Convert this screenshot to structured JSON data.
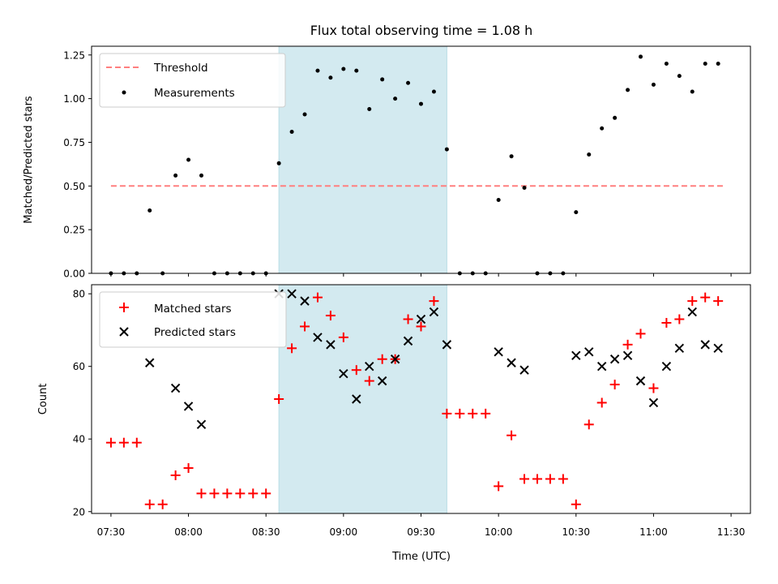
{
  "chart_data": {
    "type": "scatter",
    "title": "Flux total observing time = 1.08 h",
    "xlabel": "Time (UTC)",
    "x_tick_labels": [
      "07:30",
      "08:00",
      "08:30",
      "09:00",
      "09:30",
      "10:00",
      "10:30",
      "11:00",
      "11:30"
    ],
    "x_tick_minutes": [
      450,
      480,
      510,
      540,
      570,
      600,
      630,
      660,
      690
    ],
    "xlim_minutes": [
      442.5,
      697.5
    ],
    "highlight_span_minutes": [
      515,
      580
    ],
    "highlight_color": "#d3eaf0",
    "panels": [
      {
        "ylabel": "Matched/Predicted stars",
        "ylim": [
          0,
          1.3
        ],
        "y_ticks": [
          0.0,
          0.25,
          0.5,
          0.75,
          1.0,
          1.25
        ],
        "y_tick_labels": [
          "0.00",
          "0.25",
          "0.50",
          "0.75",
          "1.00",
          "1.25"
        ],
        "legend_position": "upper-left",
        "legend": [
          {
            "label": "Threshold",
            "style": "dashed-line",
            "color": "#ff7f7f"
          },
          {
            "label": "Measurements",
            "style": "dot",
            "color": "#000000"
          }
        ],
        "threshold": {
          "x_range_minutes": [
            450,
            687.5
          ],
          "y": 0.5,
          "color": "#ff7f7f"
        },
        "measurements": {
          "x_minutes": [
            450,
            455,
            460,
            465,
            470,
            475,
            480,
            485,
            490,
            495,
            500,
            505,
            510,
            515,
            520,
            525,
            530,
            535,
            540,
            545,
            550,
            555,
            560,
            565,
            570,
            575,
            580,
            585,
            590,
            595,
            600,
            605,
            610,
            615,
            620,
            625,
            630,
            635,
            640,
            645,
            650,
            655,
            660,
            665,
            670,
            675,
            680,
            685
          ],
          "y": [
            0.0,
            0.0,
            0.0,
            0.36,
            0.0,
            0.56,
            0.65,
            0.56,
            0.0,
            0.0,
            0.0,
            0.0,
            0.0,
            0.63,
            0.81,
            0.91,
            1.16,
            1.12,
            1.17,
            1.16,
            0.94,
            1.11,
            1.0,
            1.09,
            0.97,
            1.04,
            0.71,
            0.0,
            0.0,
            0.0,
            0.42,
            0.67,
            0.49,
            0.0,
            0.0,
            0.0,
            0.35,
            0.68,
            0.83,
            0.89,
            1.05,
            1.24,
            1.08,
            1.2,
            1.13,
            1.04,
            1.2,
            1.2
          ]
        }
      },
      {
        "ylabel": "Count",
        "ylim": [
          19.5,
          82.5
        ],
        "y_ticks": [
          20,
          40,
          60,
          80
        ],
        "y_tick_labels": [
          "20",
          "40",
          "60",
          "80"
        ],
        "legend_position": "upper-left",
        "legend": [
          {
            "label": "Matched stars",
            "style": "plus",
            "color": "#ff0000"
          },
          {
            "label": "Predicted stars",
            "style": "cross",
            "color": "#000000"
          }
        ],
        "matched_stars": {
          "x_minutes": [
            450,
            455,
            460,
            465,
            470,
            475,
            480,
            485,
            490,
            495,
            500,
            505,
            510,
            515,
            520,
            525,
            530,
            535,
            540,
            545,
            550,
            555,
            560,
            565,
            570,
            575,
            580,
            585,
            590,
            595,
            600,
            605,
            610,
            615,
            620,
            625,
            630,
            635,
            640,
            645,
            650,
            655,
            660,
            665,
            670,
            675,
            680,
            685
          ],
          "y": [
            39,
            39,
            39,
            22,
            22,
            30,
            32,
            25,
            25,
            25,
            25,
            25,
            25,
            51,
            65,
            71,
            79,
            74,
            68,
            59,
            56,
            62,
            62,
            73,
            71,
            78,
            47,
            47,
            47,
            47,
            27,
            41,
            29,
            29,
            29,
            29,
            22,
            44,
            50,
            55,
            66,
            69,
            54,
            72,
            73,
            78,
            79,
            78
          ]
        },
        "predicted_stars": {
          "x_minutes": [
            465,
            475,
            480,
            485,
            515,
            520,
            525,
            530,
            535,
            540,
            545,
            550,
            555,
            560,
            565,
            570,
            575,
            580,
            600,
            605,
            610,
            630,
            635,
            640,
            645,
            650,
            655,
            660,
            665,
            670,
            675,
            680,
            685
          ],
          "y": [
            61,
            54,
            49,
            44,
            80,
            80,
            78,
            68,
            66,
            58,
            51,
            60,
            56,
            62,
            67,
            73,
            75,
            66,
            64,
            61,
            59,
            63,
            64,
            60,
            62,
            63,
            56,
            50,
            60,
            65,
            75,
            66,
            65
          ]
        }
      }
    ]
  }
}
